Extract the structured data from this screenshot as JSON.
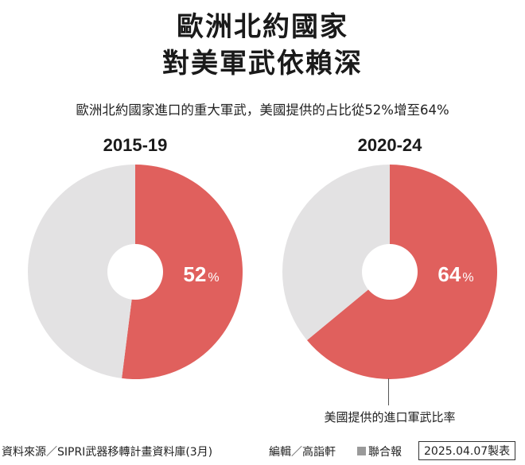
{
  "title_line1": "歐洲北約國家",
  "title_line2": "對美軍武依賴深",
  "subtitle": "歐洲北約國家進口的重大軍武，美國提供的占比從52%增至64%",
  "annotation": "美國提供的進口軍武比率",
  "footer": {
    "source": "資料來源／SIPRI武器移轉計畫資料庫(3月)",
    "editor": "編輯／高詣軒",
    "publisher": "聯合報",
    "date": "2025.04.07製表"
  },
  "colors": {
    "us": "#e0605d",
    "other": "#e3e2e3",
    "hole": "#ffffff"
  },
  "chart_data": [
    {
      "type": "pie",
      "title": "2015-19",
      "slices": [
        {
          "label": "美國提供的進口軍武比率",
          "value": 52,
          "value_label": "52",
          "unit": "%"
        },
        {
          "label": "",
          "value": 48
        }
      ]
    },
    {
      "type": "pie",
      "title": "2020-24",
      "slices": [
        {
          "label": "美國提供的進口軍武比率",
          "value": 64,
          "value_label": "64",
          "unit": "%"
        },
        {
          "label": "",
          "value": 36
        }
      ]
    }
  ]
}
